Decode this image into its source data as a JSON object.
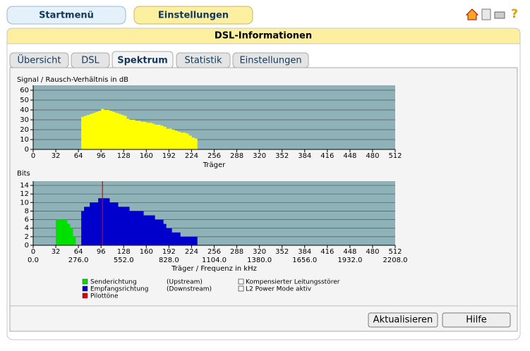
{
  "nav": {
    "buttons": [
      "Startmenü",
      "Einstellungen"
    ]
  },
  "panel": {
    "title": "DSL-Informationen",
    "tabs": [
      "Übersicht",
      "DSL",
      "Spektrum",
      "Statistik",
      "Einstellungen"
    ],
    "active_tab": 2
  },
  "options": [
    "Kompensierter Leitungsstörer",
    "L2 Power Mode aktiv"
  ],
  "buttons": [
    "Aktualisieren",
    "Hilfe"
  ],
  "chart_data": [
    {
      "type": "bar",
      "title": "Signal / Rausch-Verhältnis in dB",
      "x_label": "Träger",
      "xlim": [
        0,
        512
      ],
      "xticks": [
        0,
        32,
        64,
        96,
        128,
        160,
        192,
        224,
        256,
        288,
        320,
        352,
        384,
        416,
        448,
        480,
        512
      ],
      "ylim": [
        0,
        65
      ],
      "yticks": [
        0,
        10,
        20,
        30,
        40,
        50,
        60
      ],
      "grid": true,
      "series": [
        {
          "color": "#ffff00",
          "x": [
            68,
            72,
            76,
            80,
            84,
            88,
            92,
            96,
            100,
            104,
            108,
            112,
            116,
            120,
            124,
            128,
            132,
            136,
            140,
            144,
            148,
            152,
            156,
            160,
            164,
            168,
            172,
            176,
            180,
            184,
            188,
            192,
            196,
            200,
            204,
            208,
            212,
            216,
            220,
            224,
            228
          ],
          "values": [
            33,
            34,
            35,
            36,
            37,
            38,
            39,
            41,
            40,
            40,
            39,
            38,
            37,
            36,
            35,
            34,
            31,
            30,
            30,
            29,
            29,
            28,
            28,
            27,
            27,
            26,
            25,
            25,
            24,
            23,
            21,
            21,
            20,
            19,
            18,
            17,
            17,
            16,
            14,
            12,
            11
          ]
        }
      ]
    },
    {
      "type": "bar",
      "title": "Bits",
      "x_label": "Träger / Frequenz in kHz",
      "xlim": [
        0,
        512
      ],
      "xticks": [
        0,
        32,
        64,
        96,
        128,
        160,
        192,
        224,
        256,
        288,
        320,
        352,
        384,
        416,
        448,
        480,
        512
      ],
      "x2lim": [
        0,
        2208
      ],
      "x2ticks": [
        {
          "value": 0,
          "label": "0.0"
        },
        {
          "value": 276,
          "label": "276.0"
        },
        {
          "value": 552,
          "label": "552.0"
        },
        {
          "value": 828,
          "label": "828.0"
        },
        {
          "value": 1104,
          "label": "1104.0"
        },
        {
          "value": 1380,
          "label": "1380.0"
        },
        {
          "value": 1656,
          "label": "1656.0"
        },
        {
          "value": 1932,
          "label": "1932.0"
        },
        {
          "value": 2208,
          "label": "2208.0"
        }
      ],
      "ylim": [
        0,
        15
      ],
      "yticks": [
        0,
        2,
        4,
        6,
        8,
        10,
        12,
        14
      ],
      "grid": true,
      "series": [
        {
          "name": "Senderichtung",
          "direction": "(Upstream)",
          "color": "#00e000",
          "x": [
            32,
            36,
            40,
            44,
            48,
            52,
            56
          ],
          "values": [
            6,
            6,
            6,
            6,
            5,
            4,
            2
          ]
        },
        {
          "name": "Empfangsrichtung",
          "direction": "(Downstream)",
          "color": "#0000cc",
          "x": [
            68,
            72,
            76,
            80,
            84,
            88,
            92,
            96,
            100,
            104,
            108,
            112,
            116,
            120,
            124,
            128,
            132,
            136,
            140,
            144,
            148,
            152,
            156,
            160,
            164,
            168,
            172,
            176,
            180,
            184,
            188,
            192,
            196,
            200,
            204,
            208,
            212,
            216,
            220,
            224,
            228
          ],
          "values": [
            8,
            9,
            9,
            10,
            10,
            10,
            11,
            11,
            11,
            11,
            10,
            10,
            10,
            9,
            9,
            9,
            9,
            8,
            8,
            8,
            8,
            8,
            7,
            7,
            7,
            7,
            6,
            6,
            6,
            5,
            4,
            4,
            3,
            3,
            3,
            2,
            2,
            2,
            2,
            2,
            2
          ]
        }
      ],
      "pilot_tones": {
        "name": "Pilottöne",
        "color": "#e00000",
        "x": [
          98
        ]
      }
    }
  ]
}
